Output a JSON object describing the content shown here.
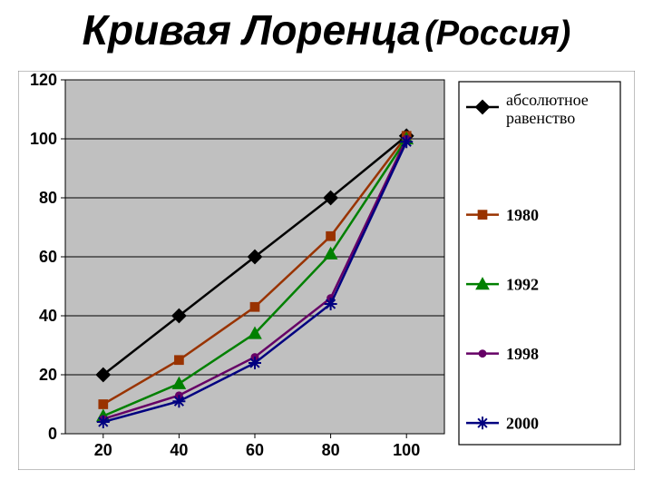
{
  "title_main": "Кривая Лоренца",
  "title_sub": "(Россия)",
  "title_fontsize_main": 46,
  "title_fontsize_sub": 38,
  "chart": {
    "type": "line",
    "background_color": "#ffffff",
    "plot_area_color": "#c0c0c0",
    "border_color": "#808080",
    "grid_color": "#000000",
    "axis_color": "#000000",
    "tick_font_size": 18,
    "legend_font_size": 18,
    "xlim": [
      10,
      110
    ],
    "ylim": [
      0,
      120
    ],
    "x_ticks": [
      20,
      40,
      60,
      80,
      100
    ],
    "y_ticks": [
      0,
      20,
      40,
      60,
      80,
      100,
      120
    ],
    "x_tick_labels": [
      "20",
      "40",
      "60",
      "80",
      "100"
    ],
    "y_tick_labels": [
      "0",
      "20",
      "40",
      "60",
      "80",
      "100",
      "120"
    ],
    "series": [
      {
        "name": "абсолютное равенство",
        "color": "#000000",
        "marker": "diamond",
        "marker_size": 11,
        "line_width": 2.5,
        "x": [
          20,
          40,
          60,
          80,
          100
        ],
        "y": [
          20,
          40,
          60,
          80,
          101
        ]
      },
      {
        "name": "1980",
        "color": "#993300",
        "marker": "square",
        "marker_size": 9,
        "line_width": 2.5,
        "x": [
          20,
          40,
          60,
          80,
          100
        ],
        "y": [
          10,
          25,
          43,
          67,
          101
        ]
      },
      {
        "name": "1992",
        "color": "#008000",
        "marker": "triangle",
        "marker_size": 10,
        "line_width": 2.5,
        "x": [
          20,
          40,
          60,
          80,
          100
        ],
        "y": [
          6,
          17,
          34,
          61,
          100
        ]
      },
      {
        "name": "1998",
        "color": "#660066",
        "marker": "circle",
        "marker_size": 8,
        "line_width": 2.5,
        "x": [
          20,
          40,
          60,
          80,
          100
        ],
        "y": [
          5,
          13,
          26,
          46,
          100
        ]
      },
      {
        "name": "2000",
        "color": "#000080",
        "marker": "asterisk",
        "marker_size": 10,
        "line_width": 2.5,
        "x": [
          20,
          40,
          60,
          80,
          100
        ],
        "y": [
          4,
          11,
          24,
          44,
          99
        ]
      }
    ],
    "legend": {
      "position": "right",
      "box_border": "#000000",
      "box_bg": "#ffffff"
    }
  }
}
